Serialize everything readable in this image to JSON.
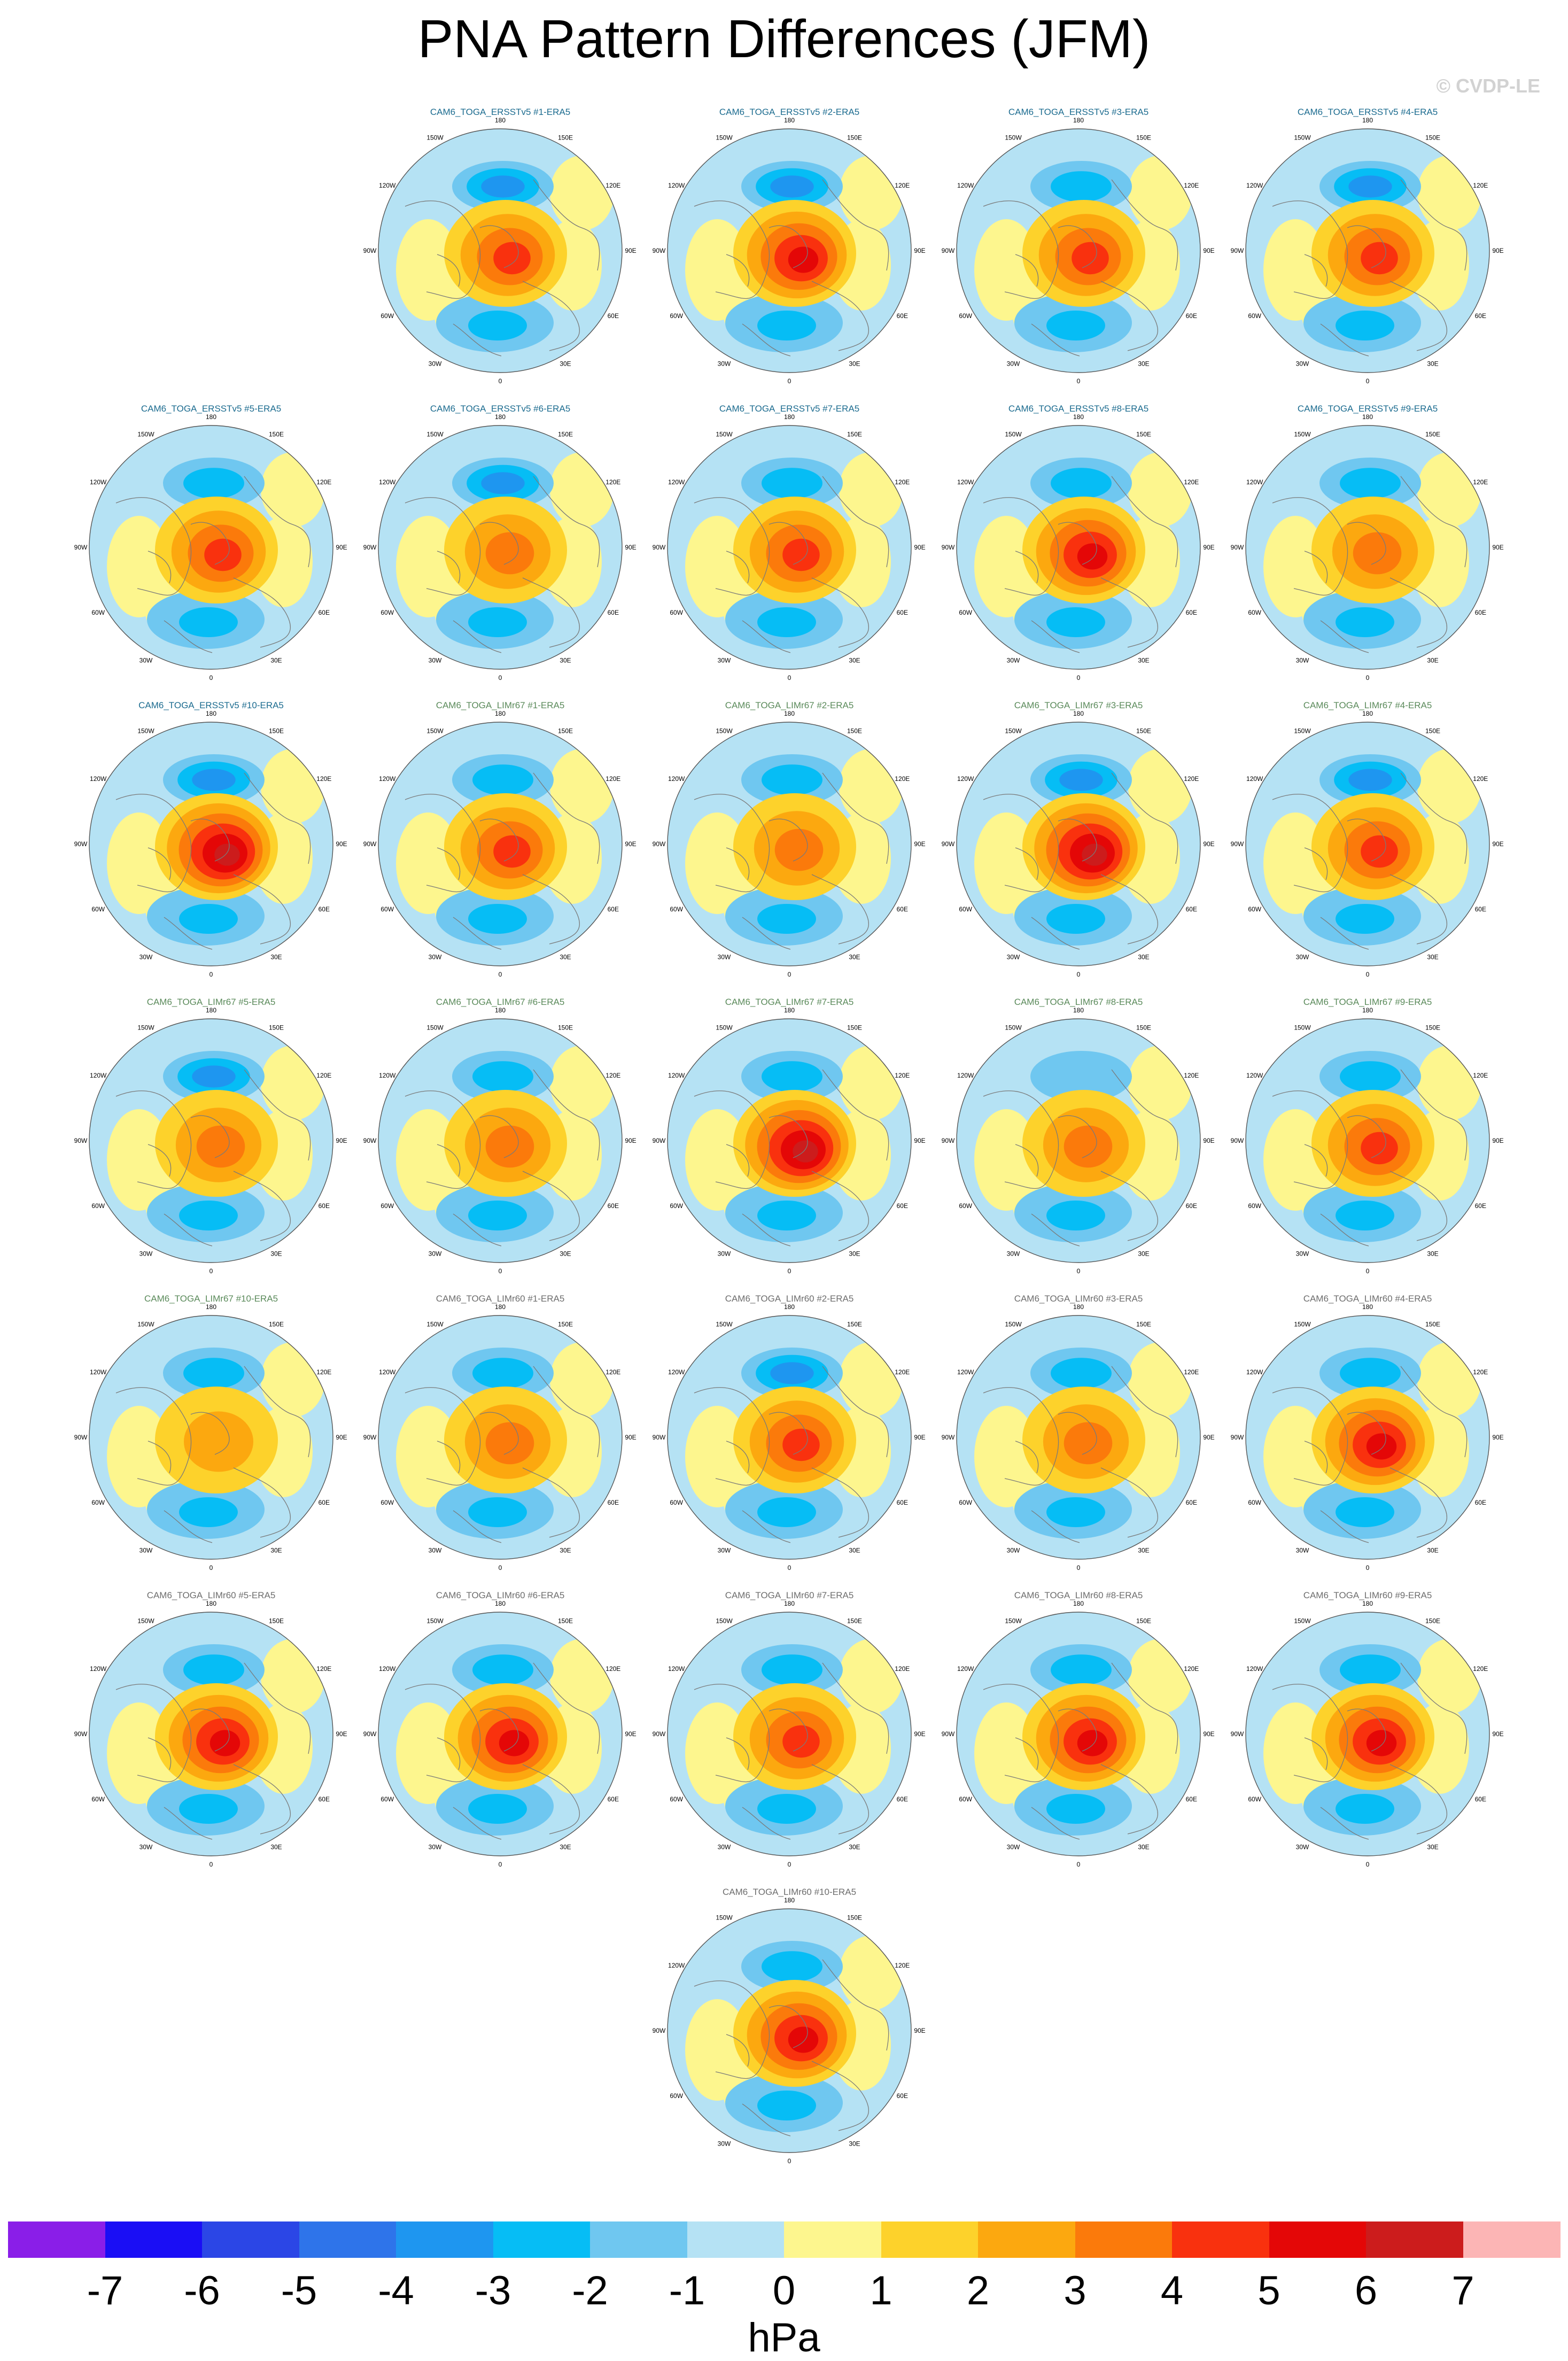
{
  "title": "PNA Pattern Differences (JFM)",
  "credit": "© CVDP-LE",
  "map_lon_labels": [
    "180",
    "150E",
    "120E",
    "90E",
    "60E",
    "30E",
    "0",
    "30W",
    "60W",
    "90W",
    "120W",
    "150W"
  ],
  "panels": [
    {
      "label": "CAM6_TOGA_ERSSTv5 #1-ERA5",
      "group": "ersst",
      "row": 0,
      "col": 1,
      "pos_peak": 3.5,
      "neg_peak": -3.0
    },
    {
      "label": "CAM6_TOGA_ERSSTv5 #2-ERA5",
      "group": "ersst",
      "row": 0,
      "col": 2,
      "pos_peak": 4.5,
      "neg_peak": -3.0
    },
    {
      "label": "CAM6_TOGA_ERSSTv5 #3-ERA5",
      "group": "ersst",
      "row": 0,
      "col": 3,
      "pos_peak": 3.5,
      "neg_peak": -2.5
    },
    {
      "label": "CAM6_TOGA_ERSSTv5 #4-ERA5",
      "group": "ersst",
      "row": 0,
      "col": 4,
      "pos_peak": 4.0,
      "neg_peak": -3.0
    },
    {
      "label": "CAM6_TOGA_ERSSTv5 #5-ERA5",
      "group": "ersst",
      "row": 1,
      "col": 0,
      "pos_peak": 3.5,
      "neg_peak": -2.5
    },
    {
      "label": "CAM6_TOGA_ERSSTv5 #6-ERA5",
      "group": "ersst",
      "row": 1,
      "col": 1,
      "pos_peak": 2.5,
      "neg_peak": -3.0
    },
    {
      "label": "CAM6_TOGA_ERSSTv5 #7-ERA5",
      "group": "ersst",
      "row": 1,
      "col": 2,
      "pos_peak": 3.5,
      "neg_peak": -2.5
    },
    {
      "label": "CAM6_TOGA_ERSSTv5 #8-ERA5",
      "group": "ersst",
      "row": 1,
      "col": 3,
      "pos_peak": 4.5,
      "neg_peak": -2.5
    },
    {
      "label": "CAM6_TOGA_ERSSTv5 #9-ERA5",
      "group": "ersst",
      "row": 1,
      "col": 4,
      "pos_peak": 3.0,
      "neg_peak": -2.0
    },
    {
      "label": "CAM6_TOGA_ERSSTv5 #10-ERA5",
      "group": "ersst",
      "row": 2,
      "col": 0,
      "pos_peak": 5.5,
      "neg_peak": -3.0
    },
    {
      "label": "CAM6_TOGA_LIMr67 #1-ERA5",
      "group": "lim67",
      "row": 2,
      "col": 1,
      "pos_peak": 3.5,
      "neg_peak": -2.5
    },
    {
      "label": "CAM6_TOGA_LIMr67 #2-ERA5",
      "group": "lim67",
      "row": 2,
      "col": 2,
      "pos_peak": 2.5,
      "neg_peak": -2.5
    },
    {
      "label": "CAM6_TOGA_LIMr67 #3-ERA5",
      "group": "lim67",
      "row": 2,
      "col": 3,
      "pos_peak": 5.5,
      "neg_peak": -3.5
    },
    {
      "label": "CAM6_TOGA_LIMr67 #4-ERA5",
      "group": "lim67",
      "row": 2,
      "col": 4,
      "pos_peak": 4.0,
      "neg_peak": -3.0
    },
    {
      "label": "CAM6_TOGA_LIMr67 #5-ERA5",
      "group": "lim67",
      "row": 3,
      "col": 0,
      "pos_peak": 3.0,
      "neg_peak": -3.0
    },
    {
      "label": "CAM6_TOGA_LIMr67 #6-ERA5",
      "group": "lim67",
      "row": 3,
      "col": 1,
      "pos_peak": 3.0,
      "neg_peak": -2.5
    },
    {
      "label": "CAM6_TOGA_LIMr67 #7-ERA5",
      "group": "lim67",
      "row": 3,
      "col": 2,
      "pos_peak": 5.5,
      "neg_peak": -2.5
    },
    {
      "label": "CAM6_TOGA_LIMr67 #8-ERA5",
      "group": "lim67",
      "row": 3,
      "col": 3,
      "pos_peak": 2.5,
      "neg_peak": -1.5
    },
    {
      "label": "CAM6_TOGA_LIMr67 #9-ERA5",
      "group": "lim67",
      "row": 3,
      "col": 4,
      "pos_peak": 3.5,
      "neg_peak": -2.5
    },
    {
      "label": "CAM6_TOGA_LIMr67 #10-ERA5",
      "group": "lim67",
      "row": 4,
      "col": 0,
      "pos_peak": 1.5,
      "neg_peak": -2.0
    },
    {
      "label": "CAM6_TOGA_LIMr60 #1-ERA5",
      "group": "lim60",
      "row": 4,
      "col": 1,
      "pos_peak": 3.0,
      "neg_peak": -2.5
    },
    {
      "label": "CAM6_TOGA_LIMr60 #2-ERA5",
      "group": "lim60",
      "row": 4,
      "col": 2,
      "pos_peak": 3.5,
      "neg_peak": -3.0
    },
    {
      "label": "CAM6_TOGA_LIMr60 #3-ERA5",
      "group": "lim60",
      "row": 4,
      "col": 3,
      "pos_peak": 3.0,
      "neg_peak": -2.5
    },
    {
      "label": "CAM6_TOGA_LIMr60 #4-ERA5",
      "group": "lim60",
      "row": 4,
      "col": 4,
      "pos_peak": 4.5,
      "neg_peak": -2.5
    },
    {
      "label": "CAM6_TOGA_LIMr60 #5-ERA5",
      "group": "lim60",
      "row": 5,
      "col": 0,
      "pos_peak": 4.5,
      "neg_peak": -2.5
    },
    {
      "label": "CAM6_TOGA_LIMr60 #6-ERA5",
      "group": "lim60",
      "row": 5,
      "col": 1,
      "pos_peak": 4.5,
      "neg_peak": -2.5
    },
    {
      "label": "CAM6_TOGA_LIMr60 #7-ERA5",
      "group": "lim60",
      "row": 5,
      "col": 2,
      "pos_peak": 3.5,
      "neg_peak": -2.5
    },
    {
      "label": "CAM6_TOGA_LIMr60 #8-ERA5",
      "group": "lim60",
      "row": 5,
      "col": 3,
      "pos_peak": 4.5,
      "neg_peak": -2.5
    },
    {
      "label": "CAM6_TOGA_LIMr60 #9-ERA5",
      "group": "lim60",
      "row": 5,
      "col": 4,
      "pos_peak": 4.5,
      "neg_peak": -2.0
    },
    {
      "label": "CAM6_TOGA_LIMr60 #10-ERA5",
      "group": "lim60",
      "row": 6,
      "col": 2,
      "pos_peak": 4.5,
      "neg_peak": -2.5
    }
  ],
  "colorbar": {
    "units": "hPa",
    "tick_labels": [
      "-7",
      "-6",
      "-5",
      "-4",
      "-3",
      "-2",
      "-1",
      "0",
      "1",
      "2",
      "3",
      "4",
      "5",
      "6",
      "7"
    ],
    "colors": [
      "#8a1ee8",
      "#1a0ef5",
      "#2b46e6",
      "#2e74ea",
      "#1e96f0",
      "#06bdf5",
      "#6fc7f0",
      "#b5e2f4",
      "#fdf68e",
      "#fdd22b",
      "#fca80f",
      "#fb7a0b",
      "#f9310e",
      "#e40707",
      "#cc1c1c",
      "#fcb5b5"
    ]
  }
}
